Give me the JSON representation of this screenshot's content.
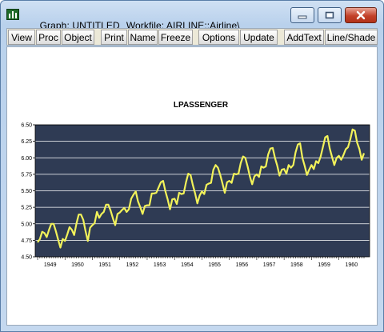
{
  "window": {
    "title_prefix": "Graph: UNTITLED",
    "title_workfile": "Workfile: AIRLINE::Airline\\",
    "icon": "graph-app-icon"
  },
  "window_controls": {
    "minimize_icon": "minimize-icon",
    "maximize_icon": "maximize-icon",
    "close_icon": "close-icon"
  },
  "toolbar": {
    "view": "View",
    "proc": "Proc",
    "object": "Object",
    "print": "Print",
    "name": "Name",
    "freeze": "Freeze",
    "options": "Options",
    "update": "Update",
    "addtext": "AddText",
    "lineshade": "Line/Shade"
  },
  "colors": {
    "plot_background": "#2f3b54",
    "line": "#f2f25a",
    "gridline": "#ffffff"
  },
  "chart_data": {
    "type": "line",
    "title": "LPASSENGER",
    "series": [
      {
        "name": "",
        "values": [
          4.72,
          4.77,
          4.88,
          4.86,
          4.8,
          4.91,
          5.0,
          5.0,
          4.89,
          4.76,
          4.64,
          4.77,
          4.74,
          4.84,
          4.95,
          4.91,
          4.83,
          5.0,
          5.14,
          5.14,
          5.06,
          4.89,
          4.74,
          4.94,
          4.98,
          5.01,
          5.18,
          5.09,
          5.15,
          5.18,
          5.29,
          5.29,
          5.2,
          5.08,
          4.98,
          5.15,
          5.17,
          5.21,
          5.24,
          5.18,
          5.22,
          5.38,
          5.44,
          5.49,
          5.34,
          5.25,
          5.15,
          5.27,
          5.28,
          5.28,
          5.46,
          5.46,
          5.47,
          5.55,
          5.63,
          5.65,
          5.49,
          5.37,
          5.22,
          5.37,
          5.38,
          5.3,
          5.47,
          5.45,
          5.46,
          5.63,
          5.76,
          5.74,
          5.59,
          5.46,
          5.31,
          5.43,
          5.49,
          5.45,
          5.59,
          5.61,
          5.62,
          5.82,
          5.89,
          5.85,
          5.74,
          5.61,
          5.47,
          5.63,
          5.65,
          5.62,
          5.76,
          5.75,
          5.76,
          5.92,
          6.02,
          6.0,
          5.87,
          5.72,
          5.6,
          5.72,
          5.75,
          5.71,
          5.87,
          5.85,
          5.87,
          6.05,
          6.14,
          6.15,
          6.0,
          5.88,
          5.73,
          5.82,
          5.83,
          5.76,
          5.89,
          5.85,
          5.89,
          6.08,
          6.2,
          6.22,
          6.0,
          5.88,
          5.74,
          5.82,
          5.89,
          5.83,
          5.95,
          5.92,
          6.02,
          6.16,
          6.31,
          6.33,
          6.14,
          6.01,
          5.89,
          6.0,
          6.03,
          5.97,
          6.04,
          6.13,
          6.16,
          6.28,
          6.43,
          6.41,
          6.23,
          6.13,
          5.97,
          6.07
        ]
      }
    ],
    "x_start_year": 1949,
    "x_start_month": 1,
    "x_tick_labels": [
      "1949",
      "1950",
      "1951",
      "1952",
      "1953",
      "1954",
      "1955",
      "1956",
      "1957",
      "1958",
      "1959",
      "1960"
    ],
    "y_tick_labels": [
      "4.50",
      "4.75",
      "5.00",
      "5.25",
      "5.50",
      "5.75",
      "6.00",
      "6.25",
      "6.50"
    ],
    "ylim": [
      4.5,
      6.5
    ],
    "grid": true,
    "legend": "none"
  }
}
